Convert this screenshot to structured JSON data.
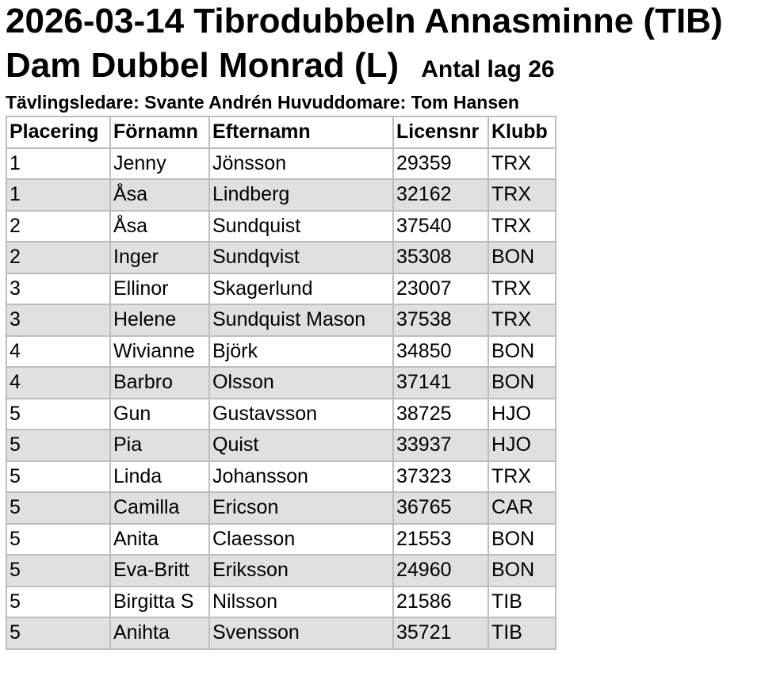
{
  "header": {
    "title": "2026-03-14 Tibrodubbeln Annasminne (TIB)",
    "class_name": "Dam Dubbel Monrad (L)",
    "team_count": "Antal lag 26",
    "officials": "Tävlingsledare: Svante Andrén Huvuddomare: Tom Hansen"
  },
  "table": {
    "columns": [
      "Placering",
      "Förnamn",
      "Efternamn",
      "Licensnr",
      "Klubb"
    ],
    "rows": [
      [
        "1",
        "Jenny",
        "Jönsson",
        "29359",
        "TRX"
      ],
      [
        "1",
        "Åsa",
        "Lindberg",
        "32162",
        "TRX"
      ],
      [
        "2",
        "Åsa",
        "Sundquist",
        "37540",
        "TRX"
      ],
      [
        "2",
        "Inger",
        "Sundqvist",
        "35308",
        "BON"
      ],
      [
        "3",
        "Ellinor",
        "Skagerlund",
        "23007",
        "TRX"
      ],
      [
        "3",
        "Helene",
        "Sundquist Mason",
        "37538",
        "TRX"
      ],
      [
        "4",
        "Wivianne",
        "Björk",
        "34850",
        "BON"
      ],
      [
        "4",
        "Barbro",
        "Olsson",
        "37141",
        "BON"
      ],
      [
        "5",
        "Gun",
        "Gustavsson",
        "38725",
        "HJO"
      ],
      [
        "5",
        "Pia",
        "Quist",
        "33937",
        "HJO"
      ],
      [
        "5",
        "Linda",
        "Johansson",
        "37323",
        "TRX"
      ],
      [
        "5",
        "Camilla",
        "Ericson",
        "36765",
        "CAR"
      ],
      [
        "5",
        "Anita",
        "Claesson",
        "21553",
        "BON"
      ],
      [
        "5",
        "Eva-Britt",
        "Eriksson",
        "24960",
        "BON"
      ],
      [
        "5",
        "Birgitta S",
        "Nilsson",
        "21586",
        "TIB"
      ],
      [
        "5",
        "Anihta",
        "Svensson",
        "35721",
        "TIB"
      ]
    ]
  }
}
